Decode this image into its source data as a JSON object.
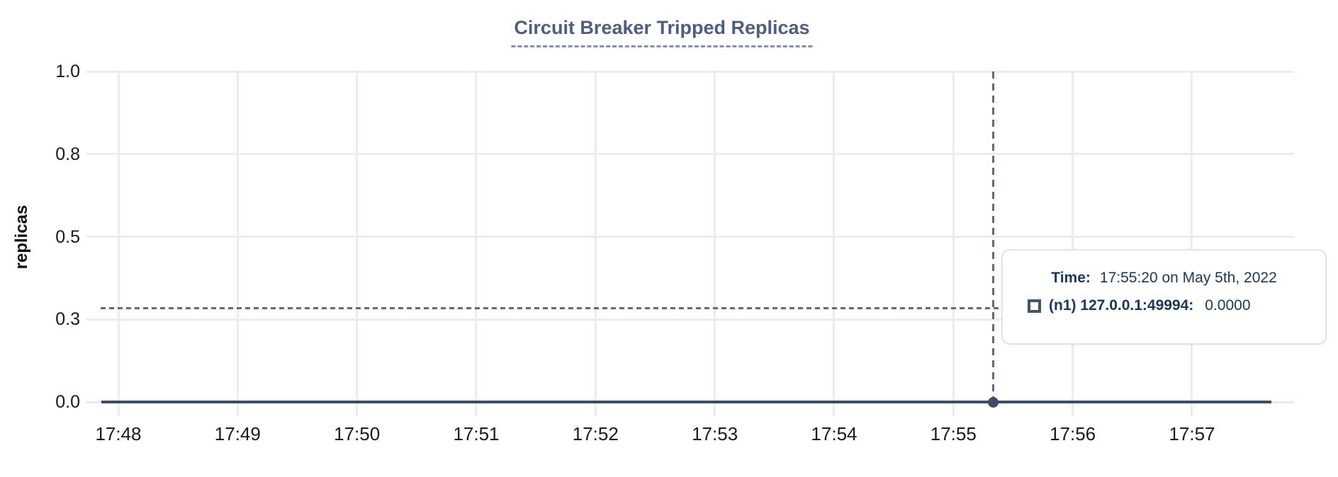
{
  "chart_data": {
    "type": "line",
    "title": "Circuit Breaker Tripped Replicas",
    "ylabel": "replicas",
    "xlabel": "",
    "x_ticks": [
      "17:48",
      "17:49",
      "17:50",
      "17:51",
      "17:52",
      "17:53",
      "17:54",
      "17:55",
      "17:56",
      "17:57"
    ],
    "y_ticks": [
      "1.0",
      "0.8",
      "0.5",
      "0.3",
      "0.0"
    ],
    "ylim": [
      0.0,
      1.0
    ],
    "grid": true,
    "legend_position": "tooltip",
    "series": [
      {
        "name": "(n1) 127.0.0.1:49994",
        "color": "#3d4d63",
        "constant_value": 0,
        "values_at_ticks": [
          0,
          0,
          0,
          0,
          0,
          0,
          0,
          0,
          0,
          0
        ]
      }
    ],
    "cursor": {
      "time": "17:55:20",
      "snapped_value": 0
    }
  },
  "tooltip": {
    "time_label": "Time:",
    "time_value": "17:55:20 on May 5th, 2022",
    "series_label": "(n1) 127.0.0.1:49994:",
    "series_value": "0.0000"
  },
  "colors": {
    "series": "#3d4d63",
    "crosshair": "#5b6d83",
    "grid": "#ececec",
    "axis_baseline": "#e9e9e9",
    "title": "#4e5e7e",
    "title_underline": "#8292ae",
    "tick_label": "#1a1a1a",
    "tooltip_text": "#17375e",
    "tooltip_border": "#e4e4e4"
  }
}
